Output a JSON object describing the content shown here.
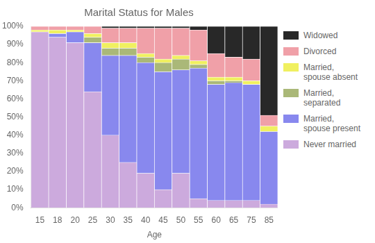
{
  "chart_data": {
    "type": "bar",
    "title": "Marital Status for Males",
    "x_label": "Age",
    "categories": [
      "15",
      "18",
      "20",
      "25",
      "30",
      "35",
      "40",
      "45",
      "50",
      "55",
      "60",
      "65",
      "75",
      "85"
    ],
    "series": [
      {
        "name": "Never married",
        "color": "#ccaadd",
        "values": [
          97,
          94,
          91,
          64,
          40,
          25,
          19,
          10,
          19,
          5,
          4,
          4,
          4,
          2
        ]
      },
      {
        "name": "Married,\nspouse present",
        "color": "#8888ee",
        "values": [
          0,
          2,
          6,
          27,
          44,
          59,
          61,
          65,
          57,
          72,
          64,
          65,
          64,
          40
        ]
      },
      {
        "name": "Married,\nseparated",
        "color": "#aab878",
        "values": [
          0,
          0,
          0,
          3,
          4,
          4,
          3,
          5,
          6,
          2,
          2,
          1,
          0,
          0
        ]
      },
      {
        "name": "Married,\nspouse absent",
        "color": "#f0f060",
        "values": [
          1,
          2,
          1,
          2,
          3,
          3,
          2,
          2,
          2,
          2,
          2,
          2,
          2,
          3
        ]
      },
      {
        "name": "Divorced",
        "color": "#f0a0a8",
        "values": [
          2,
          2,
          2,
          4,
          8,
          8,
          14,
          17,
          15,
          17,
          13,
          11,
          12,
          6
        ]
      },
      {
        "name": "Widowed",
        "color": "#282828",
        "values": [
          0,
          0,
          0,
          0,
          1,
          1,
          1,
          1,
          1,
          2,
          15,
          17,
          18,
          49
        ]
      }
    ],
    "stacked": true,
    "ylim": [
      0,
      100
    ],
    "yticks": [
      {
        "value": 0,
        "label": "0%"
      },
      {
        "value": 10,
        "label": "10%"
      },
      {
        "value": 20,
        "label": "20%"
      },
      {
        "value": 30,
        "label": "30%"
      },
      {
        "value": 40,
        "label": "40%"
      },
      {
        "value": 50,
        "label": "50%"
      },
      {
        "value": 60,
        "label": "60%"
      },
      {
        "value": 70,
        "label": "70%"
      },
      {
        "value": 80,
        "label": "80%"
      },
      {
        "value": 90,
        "label": "90%"
      },
      {
        "value": 100,
        "label": "100%"
      }
    ],
    "grid": false,
    "legend": "right"
  }
}
